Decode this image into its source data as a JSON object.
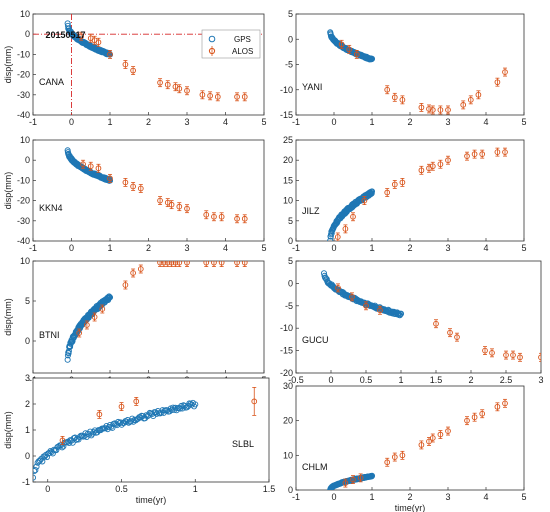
{
  "colors": {
    "gps": "#1f77b4",
    "alos": "#d95319",
    "refline": "#d62728"
  },
  "labels": {
    "date": "20150517",
    "gps": "GPS",
    "alos": "ALOS",
    "ylabel": "disp(mm)",
    "xlabel": "time(yr)"
  },
  "chart_data": [
    {
      "type": "scatter",
      "panel": "CANA",
      "station": "CANA",
      "xlim": [
        -1,
        5
      ],
      "ylim": [
        -40,
        10
      ],
      "xticks": [
        "-1",
        "0",
        "1",
        "2",
        "3",
        "4",
        "5"
      ],
      "yticks": [
        "-40",
        "-30",
        "-20",
        "-10",
        "0",
        "10"
      ],
      "ylabel": "disp(mm)",
      "legend": [
        "GPS",
        "ALOS"
      ],
      "legend_position": "top-right",
      "annotation": "20150517",
      "reference_lines": {
        "x": 0,
        "y": 0
      },
      "gps": {
        "x0": -0.1,
        "y0": 5,
        "x1": 1.0,
        "y1": -10
      },
      "alos": {
        "x": [
          0.25,
          0.5,
          0.6,
          0.7,
          1.0,
          1.4,
          1.6,
          2.3,
          2.5,
          2.7,
          2.8,
          3.0,
          3.4,
          3.6,
          3.8,
          4.3,
          4.5
        ],
        "y": [
          -1,
          -2,
          -3,
          -4,
          -10,
          -15,
          -18,
          -24,
          -25,
          -26,
          -27,
          -28,
          -30,
          -30.5,
          -31,
          -31,
          -31
        ]
      }
    },
    {
      "type": "scatter",
      "panel": "YANI",
      "station": "YANI",
      "xlim": [
        -1,
        5
      ],
      "ylim": [
        -15,
        5
      ],
      "xticks": [
        "-1",
        "0",
        "1",
        "2",
        "3",
        "4",
        "5"
      ],
      "yticks": [
        "-15",
        "-10",
        "-5",
        "0",
        "5"
      ],
      "gps": {
        "x0": -0.1,
        "y0": 1.5,
        "x1": 1.0,
        "y1": -4
      },
      "alos": {
        "x": [
          0.2,
          0.4,
          0.6,
          1.4,
          1.6,
          1.8,
          2.3,
          2.5,
          2.6,
          2.8,
          3.0,
          3.4,
          3.6,
          3.8,
          4.3,
          4.5
        ],
        "y": [
          -1,
          -2,
          -3,
          -10,
          -11.5,
          -12,
          -13.5,
          -13.8,
          -14,
          -14,
          -14,
          -13,
          -12,
          -11,
          -8.5,
          -6.5
        ]
      }
    },
    {
      "type": "scatter",
      "panel": "KKN4",
      "station": "KKN4",
      "xlim": [
        -1,
        5
      ],
      "ylim": [
        -40,
        10
      ],
      "xticks": [
        "-1",
        "0",
        "1",
        "2",
        "3",
        "4",
        "5"
      ],
      "yticks": [
        "-40",
        "-30",
        "-20",
        "-10",
        "0",
        "10"
      ],
      "ylabel": "disp(mm)",
      "gps": {
        "x0": -0.1,
        "y0": 5,
        "x1": 1.0,
        "y1": -10
      },
      "alos": {
        "x": [
          0.3,
          0.5,
          0.7,
          1.0,
          1.4,
          1.6,
          1.8,
          2.3,
          2.5,
          2.6,
          2.8,
          3.0,
          3.5,
          3.7,
          3.9,
          4.3,
          4.5
        ],
        "y": [
          -2,
          -3,
          -4,
          -9,
          -11,
          -13,
          -14,
          -20,
          -21,
          -22,
          -23,
          -24,
          -27,
          -28,
          -28,
          -29,
          -29
        ]
      }
    },
    {
      "type": "scatter",
      "panel": "JILZ",
      "station": "JILZ",
      "xlim": [
        -1,
        5
      ],
      "ylim": [
        0,
        25
      ],
      "xticks": [
        "-1",
        "0",
        "1",
        "2",
        "3",
        "4",
        "5"
      ],
      "yticks": [
        "0",
        "5",
        "10",
        "15",
        "20",
        "25"
      ],
      "gps": {
        "x0": -0.1,
        "y0": 0,
        "x1": 1.0,
        "y1": 12
      },
      "alos": {
        "x": [
          0.1,
          0.3,
          0.5,
          0.8,
          1.4,
          1.6,
          1.8,
          2.3,
          2.5,
          2.6,
          2.8,
          3.0,
          3.5,
          3.7,
          3.9,
          4.3,
          4.5
        ],
        "y": [
          1,
          3,
          6,
          10,
          12,
          14,
          14.5,
          17.5,
          18,
          18.5,
          19,
          20,
          21,
          21.5,
          21.5,
          22,
          22
        ]
      }
    },
    {
      "type": "scatter",
      "panel": "BTNI",
      "station": "BTNI",
      "xlim": [
        -1,
        5
      ],
      "ylim": [
        -4,
        10
      ],
      "xticks": [
        "-1",
        "0",
        "1",
        "2",
        "3",
        "4",
        "5"
      ],
      "yticks": [
        "0",
        "5",
        "10"
      ],
      "ylabel": "disp(mm)",
      "gps": {
        "x0": -0.1,
        "y0": -2.5,
        "x1": 1.0,
        "y1": 5.5
      },
      "alos": {
        "x": [
          0.2,
          0.4,
          0.6,
          0.8,
          1.4,
          1.6,
          1.8,
          2.3,
          2.4,
          2.5,
          2.6,
          2.7,
          2.8,
          3.0,
          3.5,
          3.7,
          3.9,
          4.3,
          4.5
        ],
        "y": [
          1,
          2,
          3,
          4,
          7,
          8.5,
          9,
          9.8,
          9.8,
          9.8,
          9.8,
          9.8,
          9.8,
          9.8,
          9.8,
          9.8,
          9.8,
          9.8,
          9.8
        ]
      }
    },
    {
      "type": "scatter",
      "panel": "GUCU",
      "station": "GUCU",
      "xlim": [
        -0.5,
        3
      ],
      "ylim": [
        -20,
        5
      ],
      "xticks": [
        "-0.5",
        "0",
        "0.5",
        "1",
        "1.5",
        "2",
        "2.5",
        "3"
      ],
      "yticks": [
        "-20",
        "-15",
        "-10",
        "-5",
        "0",
        "5"
      ],
      "gps": {
        "x0": -0.1,
        "y0": 2.5,
        "x1": 1.0,
        "y1": -7
      },
      "alos": {
        "x": [
          0.1,
          0.3,
          0.5,
          0.7,
          1.5,
          1.7,
          1.8,
          2.2,
          2.3,
          2.5,
          2.6,
          2.7,
          3.0
        ],
        "y": [
          -1,
          -3,
          -5,
          -6,
          -9,
          -11,
          -12,
          -15,
          -15.5,
          -16,
          -16,
          -16.5,
          -16.5
        ]
      }
    },
    {
      "type": "scatter",
      "panel": "SLBL",
      "station": "SLBL",
      "xlim": [
        -0.1,
        1.5
      ],
      "ylim": [
        -1,
        3
      ],
      "xticks": [
        "0",
        "0.5",
        "1",
        "1.5"
      ],
      "yticks": [
        "-1",
        "0",
        "1",
        "2",
        "3"
      ],
      "ylabel": "disp(mm)",
      "xlabel": "time(yr)",
      "gps": {
        "x0": -0.1,
        "y0": -0.8,
        "x1": 1.0,
        "y1": 2.0
      },
      "alos": {
        "x": [
          0.1,
          0.35,
          0.5,
          0.6,
          1.4
        ],
        "y": [
          0.6,
          1.6,
          1.9,
          2.1,
          2.1
        ]
      }
    },
    {
      "type": "scatter",
      "panel": "CHLM",
      "station": "CHLM",
      "xlim": [
        -1,
        5
      ],
      "ylim": [
        0,
        30
      ],
      "xticks": [
        "-1",
        "0",
        "1",
        "2",
        "3",
        "4",
        "5"
      ],
      "yticks": [
        "0",
        "10",
        "20",
        "30"
      ],
      "xlabel": "time(yr)",
      "gps": {
        "x0": -0.1,
        "y0": 0,
        "x1": 1.0,
        "y1": 4
      },
      "alos": {
        "x": [
          0.3,
          0.5,
          0.7,
          1.4,
          1.6,
          1.8,
          2.3,
          2.5,
          2.6,
          2.8,
          3.0,
          3.5,
          3.7,
          3.9,
          4.3,
          4.5
        ],
        "y": [
          2,
          3,
          3.5,
          8,
          9.5,
          10,
          13,
          14,
          15,
          16,
          17,
          20,
          21,
          22,
          24,
          25
        ]
      }
    }
  ]
}
